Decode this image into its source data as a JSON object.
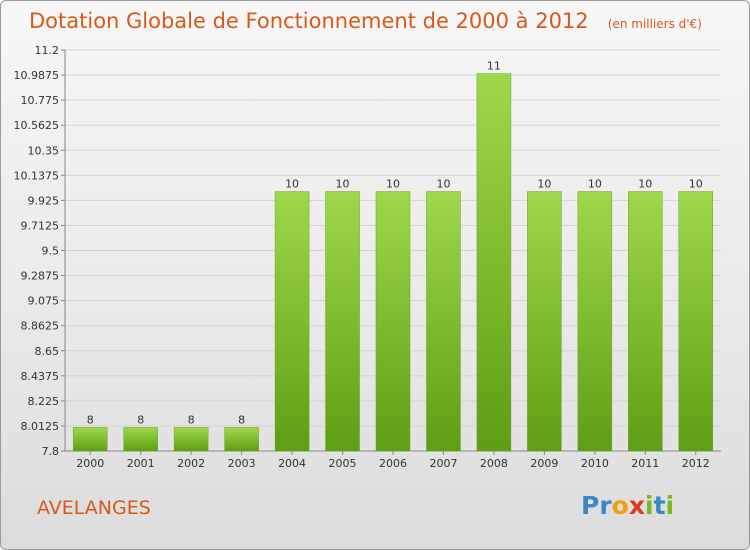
{
  "chart_data": {
    "type": "bar",
    "title": "Dotation Globale de Fonctionnement de 2000 à 2012",
    "subtitle": "(en milliers d'€)",
    "categories": [
      "2000",
      "2001",
      "2002",
      "2003",
      "2004",
      "2005",
      "2006",
      "2007",
      "2008",
      "2009",
      "2010",
      "2011",
      "2012"
    ],
    "values": [
      8,
      8,
      8,
      8,
      10,
      10,
      10,
      10,
      11,
      10,
      10,
      10,
      10
    ],
    "data_labels": [
      "8",
      "8",
      "8",
      "8",
      "10",
      "10",
      "10",
      "10",
      "11",
      "10",
      "10",
      "10",
      "10"
    ],
    "ylim": [
      7.8,
      11.2
    ],
    "yticks": [
      "11.2",
      "10.9875",
      "10.775",
      "10.5625",
      "10.35",
      "10.1375",
      "9.925",
      "9.7125",
      "9.5",
      "9.2875",
      "9.075",
      "8.8625",
      "8.65",
      "8.4375",
      "8.225",
      "8.0125",
      "7.8"
    ],
    "xlabel": "",
    "ylabel": "",
    "grid": true,
    "bar_color": "#7cbf2a",
    "bar_color_dark": "#5a9a12"
  },
  "commune": "AVELANGES",
  "logo": {
    "letters": [
      {
        "ch": "P",
        "color": "#3b86c8"
      },
      {
        "ch": "r",
        "color": "#3b86c8"
      },
      {
        "ch": "o",
        "color": "#f0a010"
      },
      {
        "ch": "x",
        "color": "#e03a1e"
      },
      {
        "ch": "i",
        "color": "#7ab62a"
      },
      {
        "ch": "t",
        "color": "#3b86c8"
      },
      {
        "ch": "i",
        "color": "#7ab62a"
      }
    ]
  }
}
